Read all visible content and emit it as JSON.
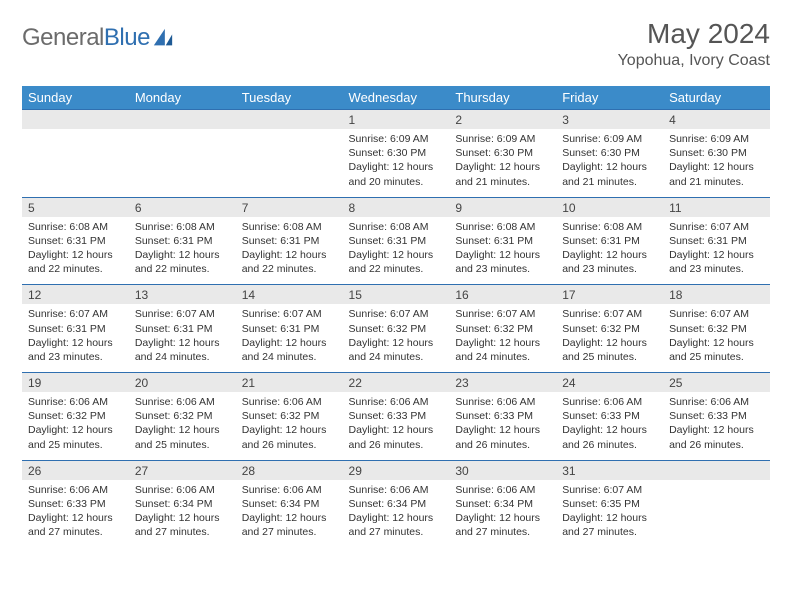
{
  "logo": {
    "text_gray": "General",
    "text_blue": "Blue"
  },
  "title": "May 2024",
  "location": "Yopohua, Ivory Coast",
  "colors": {
    "header_bg": "#3b8bc9",
    "header_fg": "#ffffff",
    "daynum_bg": "#e9e9e9",
    "daynum_border": "#2f6fb0",
    "text": "#333333",
    "logo_gray": "#6b6b6b",
    "logo_blue": "#2f6fb0"
  },
  "dow": [
    "Sunday",
    "Monday",
    "Tuesday",
    "Wednesday",
    "Thursday",
    "Friday",
    "Saturday"
  ],
  "weeks": [
    {
      "nums": [
        "",
        "",
        "",
        "1",
        "2",
        "3",
        "4"
      ],
      "cells": [
        null,
        null,
        null,
        {
          "sunrise": "6:09 AM",
          "sunset": "6:30 PM",
          "dlh": 12,
          "dlm": 20
        },
        {
          "sunrise": "6:09 AM",
          "sunset": "6:30 PM",
          "dlh": 12,
          "dlm": 21
        },
        {
          "sunrise": "6:09 AM",
          "sunset": "6:30 PM",
          "dlh": 12,
          "dlm": 21
        },
        {
          "sunrise": "6:09 AM",
          "sunset": "6:30 PM",
          "dlh": 12,
          "dlm": 21
        }
      ]
    },
    {
      "nums": [
        "5",
        "6",
        "7",
        "8",
        "9",
        "10",
        "11"
      ],
      "cells": [
        {
          "sunrise": "6:08 AM",
          "sunset": "6:31 PM",
          "dlh": 12,
          "dlm": 22
        },
        {
          "sunrise": "6:08 AM",
          "sunset": "6:31 PM",
          "dlh": 12,
          "dlm": 22
        },
        {
          "sunrise": "6:08 AM",
          "sunset": "6:31 PM",
          "dlh": 12,
          "dlm": 22
        },
        {
          "sunrise": "6:08 AM",
          "sunset": "6:31 PM",
          "dlh": 12,
          "dlm": 22
        },
        {
          "sunrise": "6:08 AM",
          "sunset": "6:31 PM",
          "dlh": 12,
          "dlm": 23
        },
        {
          "sunrise": "6:08 AM",
          "sunset": "6:31 PM",
          "dlh": 12,
          "dlm": 23
        },
        {
          "sunrise": "6:07 AM",
          "sunset": "6:31 PM",
          "dlh": 12,
          "dlm": 23
        }
      ]
    },
    {
      "nums": [
        "12",
        "13",
        "14",
        "15",
        "16",
        "17",
        "18"
      ],
      "cells": [
        {
          "sunrise": "6:07 AM",
          "sunset": "6:31 PM",
          "dlh": 12,
          "dlm": 23
        },
        {
          "sunrise": "6:07 AM",
          "sunset": "6:31 PM",
          "dlh": 12,
          "dlm": 24
        },
        {
          "sunrise": "6:07 AM",
          "sunset": "6:31 PM",
          "dlh": 12,
          "dlm": 24
        },
        {
          "sunrise": "6:07 AM",
          "sunset": "6:32 PM",
          "dlh": 12,
          "dlm": 24
        },
        {
          "sunrise": "6:07 AM",
          "sunset": "6:32 PM",
          "dlh": 12,
          "dlm": 24
        },
        {
          "sunrise": "6:07 AM",
          "sunset": "6:32 PM",
          "dlh": 12,
          "dlm": 25
        },
        {
          "sunrise": "6:07 AM",
          "sunset": "6:32 PM",
          "dlh": 12,
          "dlm": 25
        }
      ]
    },
    {
      "nums": [
        "19",
        "20",
        "21",
        "22",
        "23",
        "24",
        "25"
      ],
      "cells": [
        {
          "sunrise": "6:06 AM",
          "sunset": "6:32 PM",
          "dlh": 12,
          "dlm": 25
        },
        {
          "sunrise": "6:06 AM",
          "sunset": "6:32 PM",
          "dlh": 12,
          "dlm": 25
        },
        {
          "sunrise": "6:06 AM",
          "sunset": "6:32 PM",
          "dlh": 12,
          "dlm": 26
        },
        {
          "sunrise": "6:06 AM",
          "sunset": "6:33 PM",
          "dlh": 12,
          "dlm": 26
        },
        {
          "sunrise": "6:06 AM",
          "sunset": "6:33 PM",
          "dlh": 12,
          "dlm": 26
        },
        {
          "sunrise": "6:06 AM",
          "sunset": "6:33 PM",
          "dlh": 12,
          "dlm": 26
        },
        {
          "sunrise": "6:06 AM",
          "sunset": "6:33 PM",
          "dlh": 12,
          "dlm": 26
        }
      ]
    },
    {
      "nums": [
        "26",
        "27",
        "28",
        "29",
        "30",
        "31",
        ""
      ],
      "cells": [
        {
          "sunrise": "6:06 AM",
          "sunset": "6:33 PM",
          "dlh": 12,
          "dlm": 27
        },
        {
          "sunrise": "6:06 AM",
          "sunset": "6:34 PM",
          "dlh": 12,
          "dlm": 27
        },
        {
          "sunrise": "6:06 AM",
          "sunset": "6:34 PM",
          "dlh": 12,
          "dlm": 27
        },
        {
          "sunrise": "6:06 AM",
          "sunset": "6:34 PM",
          "dlh": 12,
          "dlm": 27
        },
        {
          "sunrise": "6:06 AM",
          "sunset": "6:34 PM",
          "dlh": 12,
          "dlm": 27
        },
        {
          "sunrise": "6:07 AM",
          "sunset": "6:35 PM",
          "dlh": 12,
          "dlm": 27
        },
        null
      ]
    }
  ],
  "labels": {
    "sunrise": "Sunrise:",
    "sunset": "Sunset:",
    "daylight_prefix": "Daylight:",
    "hours_word": "hours",
    "and_word": "and",
    "minutes_word": "minutes."
  }
}
